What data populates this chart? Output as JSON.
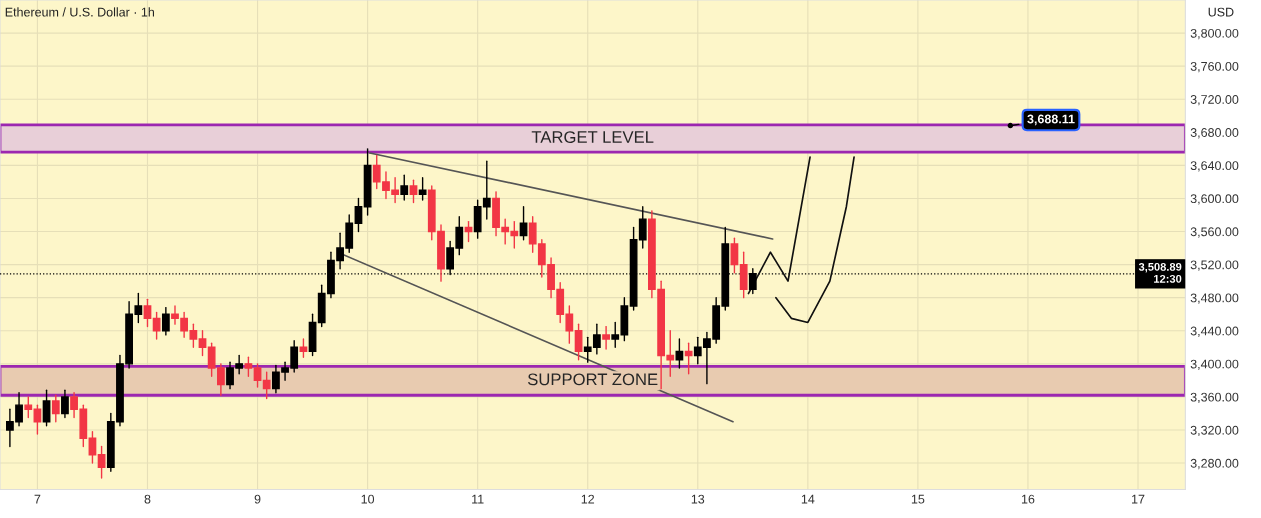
{
  "chart_data": {
    "type": "candlestick",
    "title": "Ethereum / U.S. Dollar · 1h",
    "ylabel": "USD",
    "x": [
      6.75,
      6.833,
      6.917,
      7.0,
      7.083,
      7.167,
      7.25,
      7.333,
      7.417,
      7.5,
      7.583,
      7.667,
      7.75,
      7.833,
      7.917,
      8.0,
      8.083,
      8.167,
      8.25,
      8.333,
      8.417,
      8.5,
      8.583,
      8.667,
      8.75,
      8.833,
      8.917,
      9.0,
      9.083,
      9.167,
      9.25,
      9.333,
      9.417,
      9.5,
      9.583,
      9.667,
      9.75,
      9.833,
      9.917,
      10.0,
      10.083,
      10.167,
      10.25,
      10.333,
      10.417,
      10.5,
      10.583,
      10.667,
      10.75,
      10.833,
      10.917,
      11.0,
      11.083,
      11.167,
      11.25,
      11.333,
      11.417,
      11.5,
      11.583,
      11.667,
      11.75,
      11.833,
      11.917,
      12.0,
      12.083,
      12.167,
      12.25,
      12.333,
      12.417,
      12.5,
      12.583,
      12.667,
      12.75,
      12.833,
      12.917,
      13.0,
      13.083,
      13.167,
      13.25,
      13.333,
      13.417,
      13.5
    ],
    "ohlc": [
      [
        3320,
        3345,
        3300,
        3330
      ],
      [
        3330,
        3365,
        3325,
        3350
      ],
      [
        3350,
        3360,
        3335,
        3345
      ],
      [
        3345,
        3350,
        3315,
        3330
      ],
      [
        3330,
        3368,
        3325,
        3355
      ],
      [
        3355,
        3362,
        3330,
        3340
      ],
      [
        3340,
        3368,
        3335,
        3360
      ],
      [
        3360,
        3365,
        3335,
        3345
      ],
      [
        3345,
        3350,
        3300,
        3310
      ],
      [
        3310,
        3318,
        3280,
        3290
      ],
      [
        3290,
        3300,
        3262,
        3275
      ],
      [
        3275,
        3340,
        3270,
        3330
      ],
      [
        3330,
        3410,
        3325,
        3400
      ],
      [
        3400,
        3475,
        3395,
        3460
      ],
      [
        3460,
        3485,
        3450,
        3470
      ],
      [
        3470,
        3478,
        3445,
        3455
      ],
      [
        3455,
        3462,
        3430,
        3440
      ],
      [
        3440,
        3468,
        3435,
        3460
      ],
      [
        3460,
        3470,
        3448,
        3455
      ],
      [
        3455,
        3462,
        3432,
        3440
      ],
      [
        3440,
        3448,
        3420,
        3430
      ],
      [
        3430,
        3440,
        3410,
        3420
      ],
      [
        3420,
        3425,
        3385,
        3395
      ],
      [
        3395,
        3400,
        3362,
        3375
      ],
      [
        3375,
        3402,
        3370,
        3395
      ],
      [
        3395,
        3410,
        3388,
        3400
      ],
      [
        3400,
        3408,
        3385,
        3395
      ],
      [
        3395,
        3400,
        3372,
        3380
      ],
      [
        3380,
        3390,
        3358,
        3370
      ],
      [
        3370,
        3398,
        3365,
        3390
      ],
      [
        3390,
        3402,
        3380,
        3395
      ],
      [
        3395,
        3428,
        3390,
        3420
      ],
      [
        3420,
        3430,
        3408,
        3415
      ],
      [
        3415,
        3460,
        3410,
        3450
      ],
      [
        3450,
        3495,
        3445,
        3485
      ],
      [
        3485,
        3535,
        3480,
        3525
      ],
      [
        3525,
        3558,
        3515,
        3540
      ],
      [
        3540,
        3580,
        3535,
        3570
      ],
      [
        3570,
        3600,
        3560,
        3590
      ],
      [
        3590,
        3660,
        3580,
        3640
      ],
      [
        3640,
        3652,
        3612,
        3620
      ],
      [
        3620,
        3632,
        3600,
        3610
      ],
      [
        3610,
        3625,
        3595,
        3605
      ],
      [
        3605,
        3628,
        3598,
        3615
      ],
      [
        3615,
        3622,
        3595,
        3605
      ],
      [
        3605,
        3625,
        3598,
        3610
      ],
      [
        3610,
        3615,
        3550,
        3560
      ],
      [
        3560,
        3568,
        3500,
        3515
      ],
      [
        3515,
        3548,
        3508,
        3540
      ],
      [
        3540,
        3578,
        3532,
        3565
      ],
      [
        3565,
        3572,
        3548,
        3560
      ],
      [
        3560,
        3598,
        3552,
        3590
      ],
      [
        3590,
        3645,
        3575,
        3600
      ],
      [
        3600,
        3608,
        3555,
        3565
      ],
      [
        3565,
        3575,
        3545,
        3560
      ],
      [
        3560,
        3572,
        3540,
        3555
      ],
      [
        3555,
        3590,
        3550,
        3570
      ],
      [
        3570,
        3578,
        3535,
        3545
      ],
      [
        3545,
        3550,
        3505,
        3520
      ],
      [
        3520,
        3528,
        3480,
        3490
      ],
      [
        3490,
        3498,
        3450,
        3460
      ],
      [
        3460,
        3470,
        3425,
        3440
      ],
      [
        3440,
        3448,
        3405,
        3415
      ],
      [
        3415,
        3432,
        3402,
        3420
      ],
      [
        3420,
        3448,
        3412,
        3435
      ],
      [
        3435,
        3445,
        3418,
        3430
      ],
      [
        3430,
        3450,
        3420,
        3435
      ],
      [
        3435,
        3480,
        3428,
        3470
      ],
      [
        3470,
        3565,
        3465,
        3550
      ],
      [
        3550,
        3590,
        3540,
        3575
      ],
      [
        3575,
        3585,
        3480,
        3490
      ],
      [
        3490,
        3500,
        3370,
        3410
      ],
      [
        3410,
        3440,
        3385,
        3405
      ],
      [
        3405,
        3430,
        3395,
        3415
      ],
      [
        3415,
        3425,
        3388,
        3410
      ],
      [
        3410,
        3432,
        3400,
        3420
      ],
      [
        3420,
        3438,
        3376,
        3430
      ],
      [
        3430,
        3480,
        3425,
        3470
      ],
      [
        3470,
        3565,
        3465,
        3545
      ],
      [
        3545,
        3552,
        3510,
        3520
      ],
      [
        3520,
        3535,
        3480,
        3490
      ],
      [
        3490,
        3515,
        3485,
        3509
      ]
    ],
    "series": [
      {
        "type": "line",
        "color": "#555555",
        "x": [
          10.02,
          13.68
        ],
        "values": [
          3655,
          3551
        ]
      },
      {
        "type": "line",
        "color": "#555555",
        "x": [
          9.76,
          13.32
        ],
        "values": [
          3533,
          3330
        ]
      },
      {
        "type": "line",
        "color": "#111111",
        "x": [
          13.46,
          13.66,
          13.82,
          14.02
        ],
        "values": [
          3485,
          3535,
          3500,
          3650
        ]
      },
      {
        "type": "line",
        "color": "#111111",
        "x": [
          13.71,
          13.85,
          14.0,
          14.2,
          14.35,
          14.42
        ],
        "values": [
          3480,
          3455,
          3450,
          3500,
          3590,
          3650
        ]
      }
    ],
    "bands": [
      {
        "axis": "y",
        "from": 3656,
        "to": 3689,
        "label": "TARGET LEVEL",
        "color": "#e8cfd8"
      },
      {
        "axis": "y",
        "from": 3362,
        "to": 3397,
        "label": "SUPPORT ZONE",
        "color": "#e8cbb0"
      }
    ],
    "ref_lines": [
      {
        "axis": "y",
        "value": 3508.89,
        "label": "3,508.89\n12:30",
        "line_style": "dotted",
        "color": "#000000"
      }
    ],
    "annotations": [
      {
        "text": "3,688.11",
        "x": 15.84,
        "y": 3688.11
      }
    ],
    "xlim": [
      6.66,
      17.43
    ],
    "ylim": [
      3248,
      3840
    ],
    "xticks": [
      7,
      8,
      9,
      10,
      11,
      12,
      13,
      14,
      15,
      16,
      17
    ],
    "yticks": [
      {
        "value": 3280,
        "label": "3,280.00"
      },
      {
        "value": 3320,
        "label": "3,320.00"
      },
      {
        "value": 3360,
        "label": "3,360.00"
      },
      {
        "value": 3400,
        "label": "3,400.00"
      },
      {
        "value": 3440,
        "label": "3,440.00"
      },
      {
        "value": 3480,
        "label": "3,480.00"
      },
      {
        "value": 3520,
        "label": "3,520.00"
      },
      {
        "value": 3560,
        "label": "3,560.00"
      },
      {
        "value": 3600,
        "label": "3,600.00"
      },
      {
        "value": 3640,
        "label": "3,640.00"
      },
      {
        "value": 3680,
        "label": "3,680.00"
      },
      {
        "value": 3720,
        "label": "3,720.00"
      },
      {
        "value": 3760,
        "label": "3,760.00"
      },
      {
        "value": 3800,
        "label": "3,800.00"
      }
    ],
    "grid": true
  }
}
